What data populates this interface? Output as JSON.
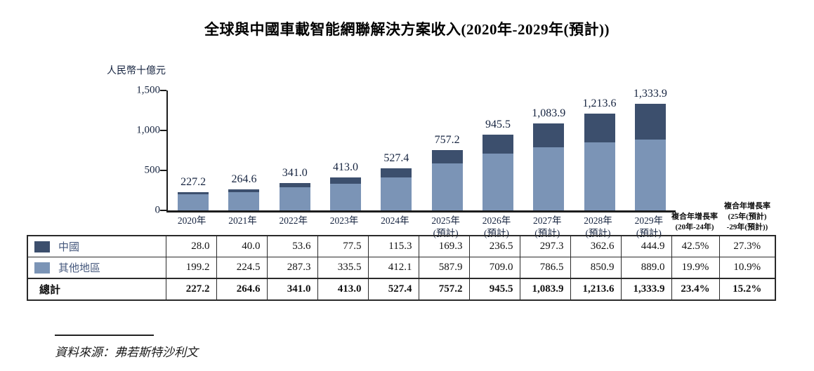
{
  "chart_data": {
    "type": "bar",
    "stacked": true,
    "title": "全球與中國車載智能網聯解決方案收入(2020年-2029年(預計))",
    "ylabel": "人民幣十億元",
    "xlabel": "",
    "ylim": [
      0,
      1500
    ],
    "grid": false,
    "legend_position": "embedded-in-table-left-column",
    "y_ticks": [
      {
        "value": 0,
        "label": "0"
      },
      {
        "value": 500,
        "label": "500"
      },
      {
        "value": 1000,
        "label": "1,000"
      },
      {
        "value": 1500,
        "label": "1,500"
      }
    ],
    "categories": [
      {
        "label": "2020年",
        "sublabel": ""
      },
      {
        "label": "2021年",
        "sublabel": ""
      },
      {
        "label": "2022年",
        "sublabel": ""
      },
      {
        "label": "2023年",
        "sublabel": ""
      },
      {
        "label": "2024年",
        "sublabel": ""
      },
      {
        "label": "2025年",
        "sublabel": "(預計)"
      },
      {
        "label": "2026年",
        "sublabel": "(預計)"
      },
      {
        "label": "2027年",
        "sublabel": "(預計)"
      },
      {
        "label": "2028年",
        "sublabel": "(預計)"
      },
      {
        "label": "2029年",
        "sublabel": "(預計)"
      }
    ],
    "series": [
      {
        "name": "中國",
        "color": "#3c4f6d",
        "values": [
          28.0,
          40.0,
          53.6,
          77.5,
          115.3,
          169.3,
          236.5,
          297.3,
          362.6,
          444.9
        ]
      },
      {
        "name": "其他地區",
        "color": "#7b94b6",
        "values": [
          199.2,
          224.5,
          287.3,
          335.5,
          412.1,
          587.9,
          709.0,
          786.5,
          850.9,
          889.0
        ]
      }
    ],
    "totals": [
      "227.2",
      "264.6",
      "341.0",
      "413.0",
      "527.4",
      "757.2",
      "945.5",
      "1,083.9",
      "1,213.6",
      "1,333.9"
    ]
  },
  "table": {
    "cagr_headers": [
      {
        "lines": [
          "複合年增長率",
          "(20年-24年)"
        ]
      },
      {
        "lines": [
          "複合年增長率",
          "(25年(預計)",
          "-29年(預計))"
        ]
      }
    ],
    "rows": [
      {
        "label": "中國",
        "swatch": "#3c4f6d",
        "bold": false,
        "values": [
          "28.0",
          "40.0",
          "53.6",
          "77.5",
          "115.3",
          "169.3",
          "236.5",
          "297.3",
          "362.6",
          "444.9"
        ],
        "cagr_20_24": "42.5%",
        "cagr_25_29": "27.3%"
      },
      {
        "label": "其他地區",
        "swatch": "#7b94b6",
        "bold": false,
        "values": [
          "199.2",
          "224.5",
          "287.3",
          "335.5",
          "412.1",
          "587.9",
          "709.0",
          "786.5",
          "850.9",
          "889.0"
        ],
        "cagr_20_24": "19.9%",
        "cagr_25_29": "10.9%"
      },
      {
        "label": "總計",
        "swatch": null,
        "bold": true,
        "values": [
          "227.2",
          "264.6",
          "341.0",
          "413.0",
          "527.4",
          "757.2",
          "945.5",
          "1,083.9",
          "1,213.6",
          "1,333.9"
        ],
        "cagr_20_24": "23.4%",
        "cagr_25_29": "15.2%"
      }
    ]
  },
  "source": "資料來源：弗若斯特沙利文"
}
